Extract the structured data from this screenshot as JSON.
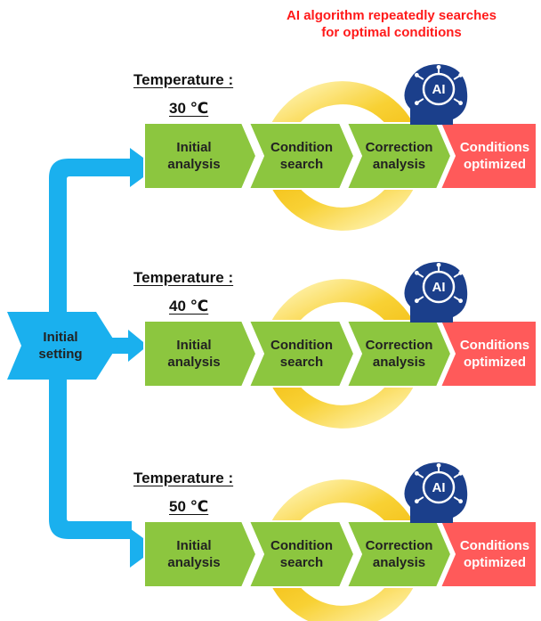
{
  "banner": {
    "line1": "AI algorithm repeatedly searches",
    "line2": "for optimal conditions"
  },
  "initial": {
    "label": "Initial\nsetting"
  },
  "temperature_label": "Temperature :",
  "rows": [
    {
      "temperature": "30 ℃",
      "steps": [
        "Initial\nanalysis",
        "Condition\nsearch",
        "Correction\nanalysis",
        "Conditions\noptimized"
      ]
    },
    {
      "temperature": "40 ℃",
      "steps": [
        "Initial\nanalysis",
        "Condition\nsearch",
        "Correction\nanalysis",
        "Conditions\noptimized"
      ]
    },
    {
      "temperature": "50 ℃",
      "steps": [
        "Initial\nanalysis",
        "Condition\nsearch",
        "Correction\nanalysis",
        "Conditions\noptimized"
      ]
    }
  ],
  "ai_badge": "AI",
  "colors": {
    "flow_arrow": "#1ab0ee",
    "step_green": "#8cc63f",
    "step_red": "#ff5a5a",
    "cycle_yellow": "#f5c200",
    "ai_head": "#1b3f8b",
    "banner_text": "#ff1a1a"
  }
}
